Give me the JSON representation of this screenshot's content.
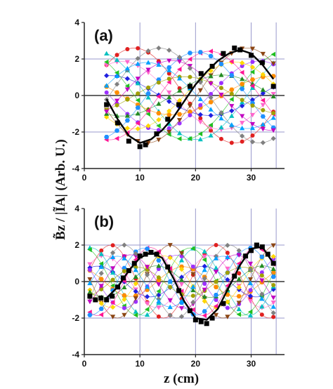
{
  "chart_data": [
    {
      "type": "scatter",
      "panel_label": "(a)",
      "xlim": [
        0,
        36
      ],
      "ylim": [
        -4,
        4
      ],
      "xticks": [
        0,
        10,
        20,
        30
      ],
      "yticks": [
        -4,
        -2,
        0,
        2,
        4
      ],
      "grid": true,
      "ylabel": "B̃z / |ĨA| (Arb. U.)",
      "xlabel": "",
      "highlight_series": {
        "marker": "square",
        "color": "#000000",
        "x": [
          4,
          6,
          8,
          10,
          11,
          13,
          15,
          17,
          19,
          21,
          23,
          25,
          27,
          28,
          30,
          32,
          34
        ],
        "y": [
          -0.5,
          -1.5,
          -2.5,
          -2.8,
          -2.7,
          -2.1,
          -1.3,
          -0.5,
          0.5,
          1.2,
          1.6,
          2.3,
          2.6,
          2.5,
          2.2,
          1.8,
          0.5
        ]
      },
      "highlight_fit": {
        "color": "#000000",
        "x": [
          4,
          6,
          8,
          10,
          12,
          14,
          16,
          18,
          20,
          22,
          24,
          26,
          28,
          30,
          32,
          34
        ],
        "y": [
          -0.2,
          -1.3,
          -2.2,
          -2.6,
          -2.4,
          -1.9,
          -1.2,
          -0.3,
          0.6,
          1.3,
          1.9,
          2.3,
          2.5,
          2.3,
          1.7,
          0.9
        ]
      },
      "other_series_count": 16,
      "other_series_amplitude": [
        2.6,
        2.5
      ],
      "other_series_colors": [
        "#e02020",
        "#ff66cc",
        "#2020e0",
        "#00c0c0",
        "#20c020",
        "#ff8c00",
        "#9b30ff",
        "#8b4513",
        "#ffd700",
        "#228b22",
        "#ff1493",
        "#1e90ff",
        "#a0a000",
        "#c000c0",
        "#808080",
        "#00a0ff"
      ]
    },
    {
      "type": "scatter",
      "panel_label": "(b)",
      "xlim": [
        0,
        36
      ],
      "ylim": [
        -4,
        4
      ],
      "xticks": [
        0,
        10,
        20,
        30
      ],
      "yticks": [
        -4,
        -2,
        0,
        2,
        4
      ],
      "grid": true,
      "xlabel": "z (cm)",
      "ylabel": "B̃z / |ĨA| (Arb. U.)",
      "highlight_series": {
        "marker": "square",
        "color": "#000000",
        "x": [
          1,
          2,
          3,
          4,
          5,
          6,
          7,
          8,
          9,
          10,
          11,
          12,
          13,
          15,
          17,
          19,
          20,
          21,
          22,
          23,
          25,
          27,
          29,
          30,
          31,
          32,
          33,
          34
        ],
        "y": [
          -0.8,
          -1.0,
          -0.9,
          -1.0,
          -0.8,
          -0.3,
          0.2,
          0.6,
          1.0,
          1.4,
          1.5,
          1.6,
          1.5,
          0.8,
          -0.5,
          -1.6,
          -2.1,
          -2.2,
          -2.3,
          -2.0,
          -1.2,
          0.3,
          1.4,
          1.7,
          2.0,
          1.9,
          1.5,
          1.0
        ]
      },
      "highlight_fit": {
        "color": "#000000",
        "x": [
          4,
          6,
          8,
          10,
          12,
          14,
          16,
          18,
          20,
          22,
          24,
          26,
          28,
          30,
          32,
          34
        ],
        "y": [
          -0.9,
          -0.3,
          0.6,
          1.3,
          1.6,
          1.3,
          0.2,
          -1.1,
          -2.0,
          -2.1,
          -1.5,
          -0.3,
          0.9,
          1.8,
          1.9,
          1.0
        ]
      },
      "other_series_count": 16,
      "other_series_amplitude": [
        2.0,
        2.3
      ],
      "other_series_colors": [
        "#e02020",
        "#ff66cc",
        "#2020e0",
        "#00c0c0",
        "#20c020",
        "#ff8c00",
        "#9b30ff",
        "#8b4513",
        "#ffd700",
        "#228b22",
        "#ff1493",
        "#1e90ff",
        "#a0a000",
        "#c000c0",
        "#808080",
        "#00a0ff"
      ]
    }
  ]
}
